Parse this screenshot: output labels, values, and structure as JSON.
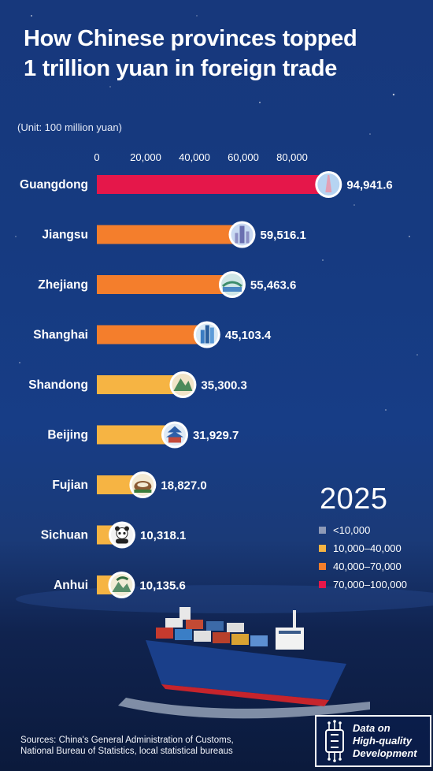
{
  "title_line1": "How Chinese provinces topped",
  "title_line2": "1 trillion yuan in foreign trade",
  "unit_label": "(Unit: 100 million yuan)",
  "legend": {
    "year": "2025",
    "items": [
      {
        "label": "<10,000",
        "color": "#8e9ab7"
      },
      {
        "label": "10,000–40,000",
        "color": "#f6b443"
      },
      {
        "label": "40,000–70,000",
        "color": "#f47e2c"
      },
      {
        "label": "70,000–100,000",
        "color": "#e5174a"
      }
    ]
  },
  "chart_data": {
    "type": "bar",
    "orientation": "horizontal",
    "categories": [
      "Guangdong",
      "Jiangsu",
      "Zhejiang",
      "Shanghai",
      "Shandong",
      "Beijing",
      "Fujian",
      "Sichuan",
      "Anhui"
    ],
    "values": [
      94941.6,
      59516.1,
      55463.6,
      45103.4,
      35300.3,
      31929.7,
      18827.0,
      10318.1,
      10135.6
    ],
    "value_labels": [
      "94,941.6",
      "59,516.1",
      "55,463.6",
      "45,103.4",
      "35,300.3",
      "31,929.7",
      "18,827.0",
      "10,318.1",
      "10,135.6"
    ],
    "bar_colors": [
      "#e5174a",
      "#f47e2c",
      "#f47e2c",
      "#f47e2c",
      "#f6b443",
      "#f6b443",
      "#f6b443",
      "#f6b443",
      "#f6b443"
    ],
    "x_ticks": [
      0,
      20000,
      40000,
      60000,
      80000
    ],
    "x_tick_labels": [
      "0",
      "20,000",
      "40,000",
      "60,000",
      "80,000"
    ],
    "xlim": [
      0,
      100000
    ],
    "landmark_icons": [
      "canton-tower-icon",
      "jiangsu-tower-icon",
      "west-lake-bridge-icon",
      "shanghai-skyline-icon",
      "mount-tai-icon",
      "temple-of-heaven-icon",
      "tulou-icon",
      "panda-icon",
      "huangshan-pine-icon"
    ]
  },
  "sources_line1": "Sources: China's General Administration of Customs,",
  "sources_line2": "National Bureau of Statistics, local statistical bureaus",
  "badge": {
    "line1": "Data on",
    "line2": "High-quality",
    "line3": "Development",
    "icon": "circuit-chip-icon"
  }
}
